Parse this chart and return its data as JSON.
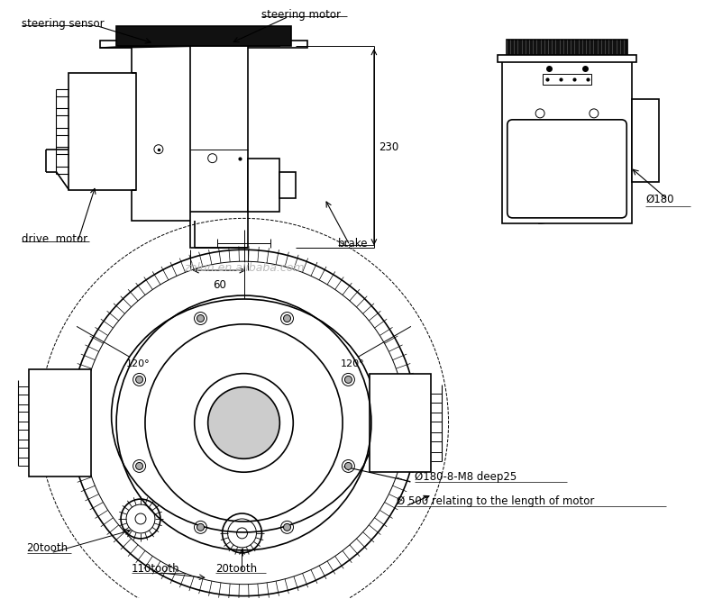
{
  "background_color": "#ffffff",
  "watermark": "zhlun.en.alibaba.com",
  "labels": {
    "steering_sensor": "steering sensor",
    "steering_motor": "steering motor",
    "drive_motor": "drive  motor",
    "brake": "brake",
    "dim_230": "230",
    "dim_60": "60",
    "dim_180_side": "Ø180",
    "dim_180_bolt": "Ø180-8-M8 deep25",
    "dim_500": "Ø 500 relating to the length of motor",
    "angle_120_left": "120°",
    "angle_120_right": "120°",
    "tooth_20_left": "20tooth",
    "tooth_110": "110tooth",
    "tooth_20_right": "20tooth"
  }
}
